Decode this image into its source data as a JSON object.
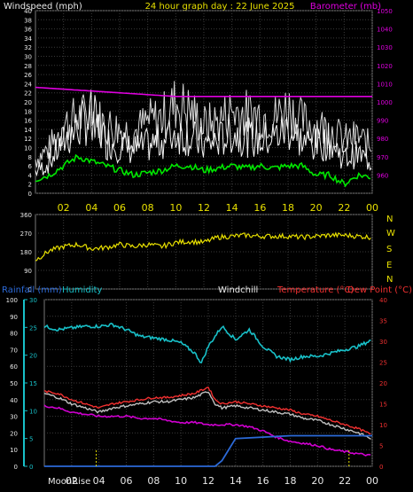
{
  "header": {
    "left": "Windspeed (mph)",
    "center": "24 hour graph day : 22 June 2025",
    "right": "Barometer (mb)"
  },
  "colors": {
    "windspeed": "#f4f4f4",
    "gust": "#d8d8d8",
    "wind_avg": "#00e800",
    "barometer": "#e000e0",
    "direction": "#e8e000",
    "humidity": "#18c0c8",
    "rain": "#2c6ad8",
    "temperature": "#f03030",
    "dewpoint": "#d000d0",
    "windchill": "#c0c0c0",
    "moon": "#e8e000"
  },
  "chart_data": [
    {
      "type": "line",
      "name": "wind-barometer",
      "x_ticks": [
        "02",
        "04",
        "06",
        "08",
        "10",
        "12",
        "14",
        "16",
        "18",
        "20",
        "22",
        "00"
      ],
      "x_range": [
        0,
        24
      ],
      "y_left": {
        "label": "Windspeed (mph)",
        "range": [
          0,
          40
        ],
        "ticks": [
          0,
          2,
          4,
          6,
          8,
          10,
          12,
          14,
          16,
          18,
          20,
          22,
          24,
          26,
          28,
          30,
          32,
          34,
          36,
          38,
          40
        ]
      },
      "y_right": {
        "label": "Barometer (mb)",
        "range": [
          950,
          1050
        ],
        "ticks": [
          960,
          970,
          980,
          990,
          1000,
          1010,
          1020,
          1030,
          1040,
          1050
        ]
      },
      "grid": true,
      "series": [
        {
          "name": "Windspeed (mph)",
          "axis": "left",
          "x": [
            0,
            1,
            2,
            3,
            4,
            5,
            6,
            7,
            8,
            9,
            10,
            11,
            12,
            13,
            14,
            15,
            16,
            17,
            18,
            19,
            20,
            21,
            22,
            23,
            24
          ],
          "values": [
            5,
            7,
            12,
            15,
            18,
            12,
            11,
            10,
            11,
            12,
            14,
            13,
            11,
            12,
            14,
            13,
            12,
            13,
            15,
            12,
            11,
            12,
            8,
            9,
            7
          ]
        },
        {
          "name": "Gusts",
          "axis": "left",
          "x": [
            0,
            1,
            2,
            3,
            4,
            5,
            6,
            7,
            8,
            9,
            10,
            11,
            12,
            13,
            14,
            15,
            16,
            17,
            18,
            19,
            20,
            21,
            22,
            23,
            24
          ],
          "values": [
            9,
            12,
            18,
            20,
            21,
            18,
            17,
            16,
            19,
            20,
            24,
            22,
            18,
            19,
            22,
            21,
            21,
            20,
            23,
            19,
            18,
            17,
            14,
            15,
            12
          ]
        },
        {
          "name": "Average",
          "axis": "left",
          "x": [
            0,
            1,
            2,
            3,
            4,
            5,
            6,
            7,
            8,
            9,
            10,
            11,
            12,
            13,
            14,
            15,
            16,
            17,
            18,
            19,
            20,
            21,
            22,
            23,
            24
          ],
          "values": [
            3,
            4,
            6,
            8,
            7,
            6,
            5,
            4,
            4.5,
            5,
            6,
            6,
            5,
            5.5,
            6,
            5.5,
            6,
            5.5,
            6,
            6,
            4,
            4,
            2,
            4,
            3.5
          ]
        },
        {
          "name": "Barometer (mb)",
          "axis": "right",
          "x": [
            0,
            2,
            4,
            6,
            8,
            10,
            12,
            14,
            16,
            18,
            20,
            22,
            24
          ],
          "values": [
            1008,
            1007,
            1006,
            1005,
            1004,
            1003,
            1003,
            1003,
            1003,
            1003,
            1003,
            1003,
            1003
          ]
        }
      ]
    },
    {
      "type": "line",
      "name": "wind-direction",
      "x_range": [
        0,
        24
      ],
      "y_range": [
        0,
        360
      ],
      "y_ticks": [
        0,
        90,
        180,
        270,
        360
      ],
      "y_right_labels": [
        "N",
        "W",
        "S",
        "E",
        "N"
      ],
      "series": [
        {
          "name": "Wind direction",
          "x": [
            0,
            1,
            2,
            3,
            4,
            5,
            6,
            7,
            8,
            9,
            10,
            11,
            12,
            13,
            14,
            15,
            16,
            17,
            18,
            19,
            20,
            21,
            22,
            23,
            24
          ],
          "values": [
            140,
            185,
            205,
            215,
            195,
            200,
            215,
            205,
            215,
            205,
            225,
            230,
            225,
            250,
            255,
            260,
            255,
            255,
            255,
            250,
            255,
            260,
            260,
            255,
            250
          ]
        }
      ]
    },
    {
      "type": "line",
      "name": "rain-humidity-temp",
      "legend": [
        "Rainfall (mm)",
        "Humidity",
        "Windchill",
        "Temperature (°C)",
        "Dew Point (°C)"
      ],
      "x_ticks": [
        "02",
        "04",
        "06",
        "08",
        "10",
        "12",
        "14",
        "16",
        "18",
        "20",
        "22",
        "00"
      ],
      "x_range": [
        0,
        24
      ],
      "y_humidity": {
        "range": [
          0,
          100
        ],
        "ticks": [
          0,
          10,
          20,
          30,
          40,
          50,
          60,
          70,
          80,
          90,
          100
        ]
      },
      "y_rain": {
        "range": [
          0,
          30
        ],
        "ticks": [
          0,
          5,
          10,
          15,
          20,
          25,
          30
        ]
      },
      "y_temp": {
        "range": [
          0,
          40
        ],
        "ticks": [
          0,
          5,
          10,
          15,
          20,
          25,
          30,
          35,
          40
        ]
      },
      "moonrise": {
        "label": "MoonRise",
        "hours": [
          3.8,
          22.3
        ]
      },
      "series": [
        {
          "name": "Humidity",
          "axis": "humidity",
          "x": [
            0,
            1,
            2,
            3,
            4,
            5,
            6,
            7,
            8,
            9,
            10,
            11,
            11.5,
            12,
            13,
            14,
            15,
            16,
            17,
            18,
            19,
            20,
            21,
            22,
            23,
            24
          ],
          "values": [
            84,
            82,
            83,
            84,
            84,
            85,
            82,
            78,
            77,
            76,
            74,
            68,
            62,
            72,
            84,
            76,
            82,
            72,
            66,
            64,
            66,
            66,
            68,
            70,
            72,
            76
          ]
        },
        {
          "name": "Temperature (°C)",
          "axis": "temp",
          "x": [
            0,
            1,
            2,
            3,
            4,
            5,
            6,
            7,
            8,
            9,
            10,
            11,
            12,
            12.5,
            13,
            14,
            15,
            16,
            17,
            18,
            19,
            20,
            21,
            22,
            23,
            24
          ],
          "values": [
            18,
            17.5,
            16,
            15,
            14,
            15,
            15.5,
            16,
            16.5,
            16.5,
            17,
            17.5,
            19,
            16,
            15,
            15.5,
            15,
            14.5,
            14,
            13.5,
            12.5,
            12,
            11,
            10,
            9,
            7.5
          ]
        },
        {
          "name": "Windchill",
          "axis": "temp",
          "x": [
            0,
            1,
            2,
            3,
            4,
            5,
            6,
            7,
            8,
            9,
            10,
            11,
            12,
            12.5,
            13,
            14,
            15,
            16,
            17,
            18,
            19,
            20,
            21,
            22,
            23,
            24
          ],
          "values": [
            17.5,
            16.5,
            15,
            14,
            13,
            14,
            14.5,
            15,
            15.5,
            15.5,
            16,
            16.5,
            18,
            15,
            14,
            14.5,
            14,
            13.5,
            13,
            12.5,
            11.5,
            11,
            10,
            9,
            8,
            6.5
          ]
        },
        {
          "name": "Dew Point (°C)",
          "axis": "temp",
          "x": [
            0,
            1,
            2,
            3,
            4,
            5,
            6,
            7,
            8,
            9,
            10,
            11,
            12,
            13,
            14,
            15,
            16,
            17,
            18,
            19,
            20,
            21,
            22,
            23,
            24
          ],
          "values": [
            14.5,
            14,
            13,
            12.5,
            12,
            12,
            12,
            11.5,
            11.5,
            11,
            10.5,
            10.5,
            10,
            10,
            10,
            9.5,
            8.5,
            7,
            6,
            5.5,
            5,
            4,
            3.5,
            3,
            2.5
          ]
        },
        {
          "name": "Rainfall (mm)",
          "axis": "rain",
          "x": [
            0,
            12,
            12.5,
            13,
            13.5,
            14,
            18,
            24
          ],
          "values": [
            0,
            0,
            0,
            1,
            3,
            5,
            5.5,
            5.5
          ]
        }
      ]
    }
  ]
}
